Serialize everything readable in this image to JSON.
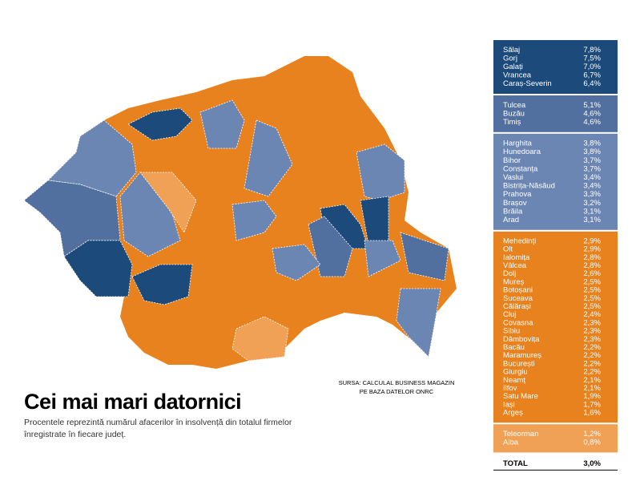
{
  "title": "Cei mai mari datornici",
  "subtitle": [
    "Procentele reprezintă numărul afacerilor în insolvență din totalul firmelor",
    "înregistrate în fiecare județ."
  ],
  "source": [
    "SURSA: CALCULAL BUSINESS MAGAZIN",
    "PE BAZA DATELOR ONRC"
  ],
  "legend": {
    "groups": [
      {
        "rows": [
          [
            "Sălaj",
            "7,8%"
          ],
          [
            "Gorj",
            "7,5%"
          ],
          [
            "Galați",
            "7,0%"
          ],
          [
            "Vrancea",
            "6,7%"
          ],
          [
            "Caraș-Severin",
            "6,4%"
          ]
        ]
      },
      {
        "rows": [
          [
            "Tulcea",
            "5,1%"
          ],
          [
            "Buzău",
            "4,6%"
          ],
          [
            "Timiș",
            "4,6%"
          ]
        ]
      },
      {
        "rows": [
          [
            "Harghita",
            "3,8%"
          ],
          [
            "Hunedoara",
            "3,8%"
          ],
          [
            "Bihor",
            "3,7%"
          ],
          [
            "Constanța",
            "3,7%"
          ],
          [
            "Vaslui",
            "3,4%"
          ],
          [
            "Bistrița-Năsăud",
            "3,4%"
          ],
          [
            "Prahova",
            "3,3%"
          ],
          [
            "Brașov",
            "3,2%"
          ],
          [
            "Brăila",
            "3,1%"
          ],
          [
            "Arad",
            "3,1%"
          ]
        ]
      },
      {
        "rows": [
          [
            "Mehedinți",
            "2,9%"
          ],
          [
            "Olt",
            "2,9%"
          ],
          [
            "Ialomița",
            "2,8%"
          ],
          [
            "Vâlcea",
            "2,8%"
          ],
          [
            "Dolj",
            "2,6%"
          ],
          [
            "Mureș",
            "2,5%"
          ],
          [
            "Botoșani",
            "2,5%"
          ],
          [
            "Suceava",
            "2,5%"
          ],
          [
            "Călărași",
            "2,5%"
          ],
          [
            "Cluj",
            "2,4%"
          ],
          [
            "Covasna",
            "2,3%"
          ],
          [
            "Sibiu",
            "2,3%"
          ],
          [
            "Dâmbovița",
            "2,3%"
          ],
          [
            "Bacău",
            "2,2%"
          ],
          [
            "Maramureș",
            "2,2%"
          ],
          [
            "București",
            "2,2%"
          ],
          [
            "Giurgiu",
            "2,2%"
          ],
          [
            "Neamț",
            "2,1%"
          ],
          [
            "Ilfov",
            "2,1%"
          ],
          [
            "Satu Mare",
            "1,9%"
          ],
          [
            "Iași",
            "1,7%"
          ],
          [
            "Argeș",
            "1,6%"
          ]
        ]
      },
      {
        "rows": [
          [
            "Teleorman",
            "1,2%"
          ],
          [
            "Alba",
            "0,8%"
          ]
        ]
      }
    ],
    "total": [
      "TOTAL",
      "3,0%"
    ]
  }
}
